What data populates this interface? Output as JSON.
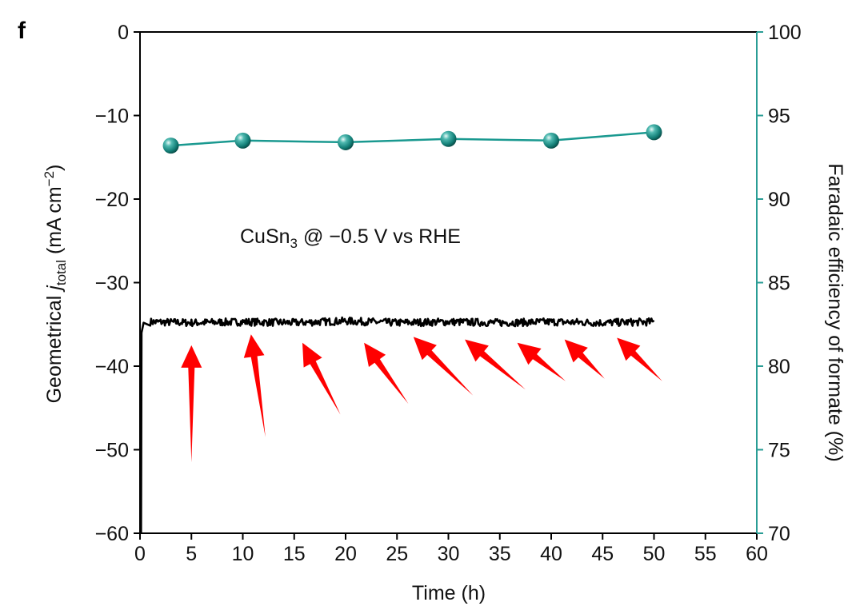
{
  "panel_label": "f",
  "annotation": {
    "prefix": "CuSn",
    "subscript": "3",
    "suffix": " @ −0.5 V vs RHE"
  },
  "chart_data": {
    "type": "line",
    "xlabel": "Time (h)",
    "ylabel_left": {
      "prefix": "Geometrical ",
      "italic": "j",
      "subscript": "total",
      "unit_open": " (mA cm",
      "superscript": "−2",
      "unit_close": ")"
    },
    "ylabel_right": "Faradaic efficiency of formate (%)",
    "xlim": [
      0,
      60
    ],
    "ylim_left": [
      -60,
      0
    ],
    "ylim_right": [
      70,
      100
    ],
    "x_ticks": [
      0,
      5,
      10,
      15,
      20,
      25,
      30,
      35,
      40,
      45,
      50,
      55,
      60
    ],
    "y_left_ticks": [
      0,
      -10,
      -20,
      -30,
      -40,
      -50,
      -60
    ],
    "y_left_tick_labels": [
      "0",
      "−10",
      "−20",
      "−30",
      "−40",
      "−50",
      "−60"
    ],
    "y_right_ticks": [
      100,
      95,
      90,
      85,
      80,
      75,
      70
    ],
    "series": [
      {
        "axis": "left",
        "color": "#000000",
        "style": "noisy-line",
        "x": [
          0.1,
          0.15,
          0.35,
          1,
          5,
          10,
          15,
          20,
          25,
          30,
          35,
          40,
          45,
          50
        ],
        "y": [
          -60,
          -36,
          -34.8,
          -34.7,
          -34.8,
          -34.7,
          -34.8,
          -34.6,
          -34.8,
          -34.7,
          -34.8,
          -34.7,
          -34.8,
          -34.7
        ]
      },
      {
        "axis": "right",
        "color": "#1a9990",
        "style": "line-markers",
        "x": [
          3,
          10,
          20,
          30,
          40,
          50
        ],
        "y": [
          93.2,
          93.5,
          93.4,
          93.6,
          93.5,
          94.0
        ]
      }
    ],
    "arrows": [
      {
        "color": "#ff0000",
        "tail": [
          5,
          -51.5
        ],
        "head": [
          5,
          -37.5
        ]
      },
      {
        "color": "#ff0000",
        "tail": [
          12.2,
          -48.5
        ],
        "head": [
          10.8,
          -36.2
        ]
      },
      {
        "color": "#ff0000",
        "tail": [
          19.5,
          -45.8
        ],
        "head": [
          15.8,
          -37.2
        ]
      },
      {
        "color": "#ff0000",
        "tail": [
          26.1,
          -44.5
        ],
        "head": [
          21.8,
          -37.2
        ]
      },
      {
        "color": "#ff0000",
        "tail": [
          32.4,
          -43.5
        ],
        "head": [
          26.6,
          -36.5
        ]
      },
      {
        "color": "#ff0000",
        "tail": [
          37.5,
          -42.8
        ],
        "head": [
          31.6,
          -36.8
        ]
      },
      {
        "color": "#ff0000",
        "tail": [
          41.4,
          -41.8
        ],
        "head": [
          36.7,
          -37.2
        ]
      },
      {
        "color": "#ff0000",
        "tail": [
          45.2,
          -41.5
        ],
        "head": [
          41.3,
          -36.8
        ]
      },
      {
        "color": "#ff0000",
        "tail": [
          50.8,
          -41.8
        ],
        "head": [
          46.4,
          -36.6
        ]
      }
    ]
  }
}
